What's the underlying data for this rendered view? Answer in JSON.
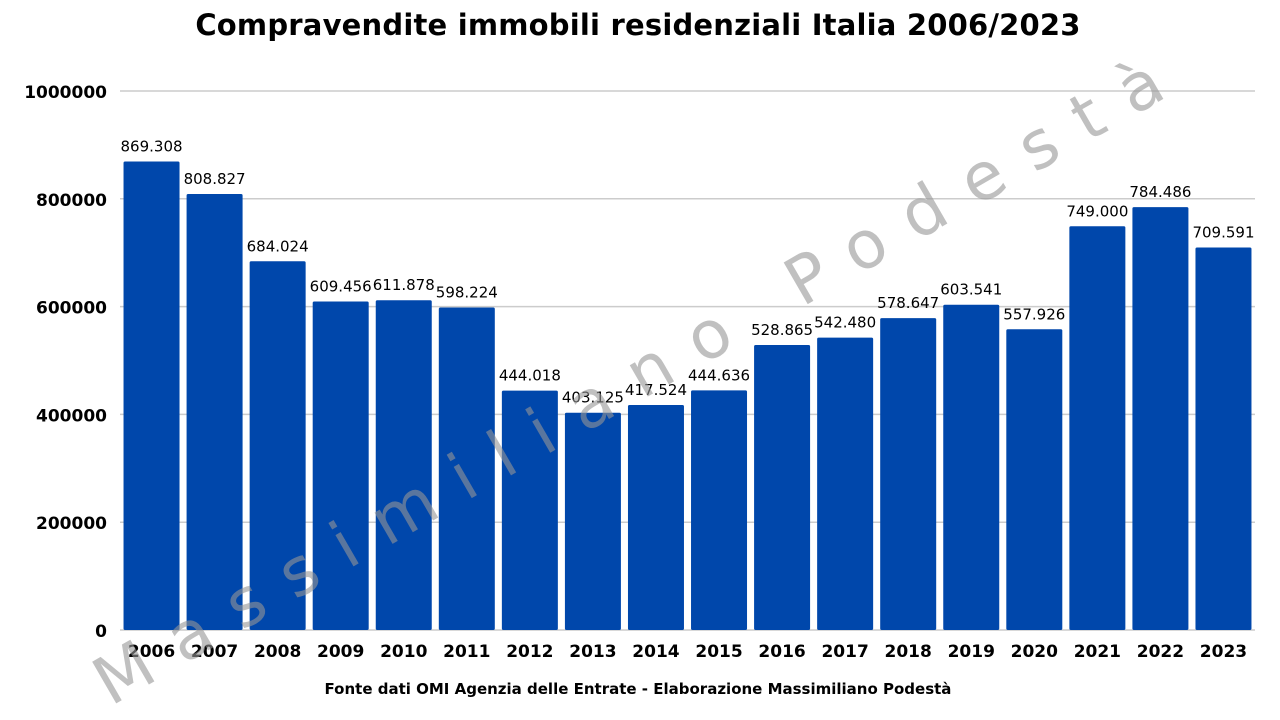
{
  "colors": {
    "bar": "#0047ab",
    "grid": "#cccccc",
    "text": "#000000",
    "watermark": "rgba(150,150,150,0.6)"
  },
  "chart_data": {
    "type": "bar",
    "title": "Compravendite immobili residenziali Italia 2006/2023",
    "xlabel": "",
    "ylabel": "",
    "ylim": [
      0,
      1000000
    ],
    "yticks": [
      0,
      200000,
      400000,
      600000,
      800000,
      1000000
    ],
    "ytick_labels": [
      "0",
      "200000",
      "400000",
      "600000",
      "800000",
      "1000000"
    ],
    "grid": true,
    "legend": "none",
    "categories": [
      "2006",
      "2007",
      "2008",
      "2009",
      "2010",
      "2011",
      "2012",
      "2013",
      "2014",
      "2015",
      "2016",
      "2017",
      "2018",
      "2019",
      "2020",
      "2021",
      "2022",
      "2023"
    ],
    "values": [
      869308,
      808827,
      684024,
      609456,
      611878,
      598224,
      444018,
      403125,
      417524,
      444636,
      528865,
      542480,
      578647,
      603541,
      557926,
      749000,
      784486,
      709591
    ],
    "value_labels": [
      "869.308",
      "808.827",
      "684.024",
      "609.456",
      "611.878",
      "598.224",
      "444.018",
      "403.125",
      "417.524",
      "444.636",
      "528.865",
      "542.480",
      "578.647",
      "603.541",
      "557.926",
      "749.000",
      "784.486",
      "709.591"
    ]
  },
  "source_note": "Fonte dati OMI Agenzia delle Entrate - Elaborazione Massimiliano Podestà",
  "watermark_text": "Massimiliano Podestà"
}
